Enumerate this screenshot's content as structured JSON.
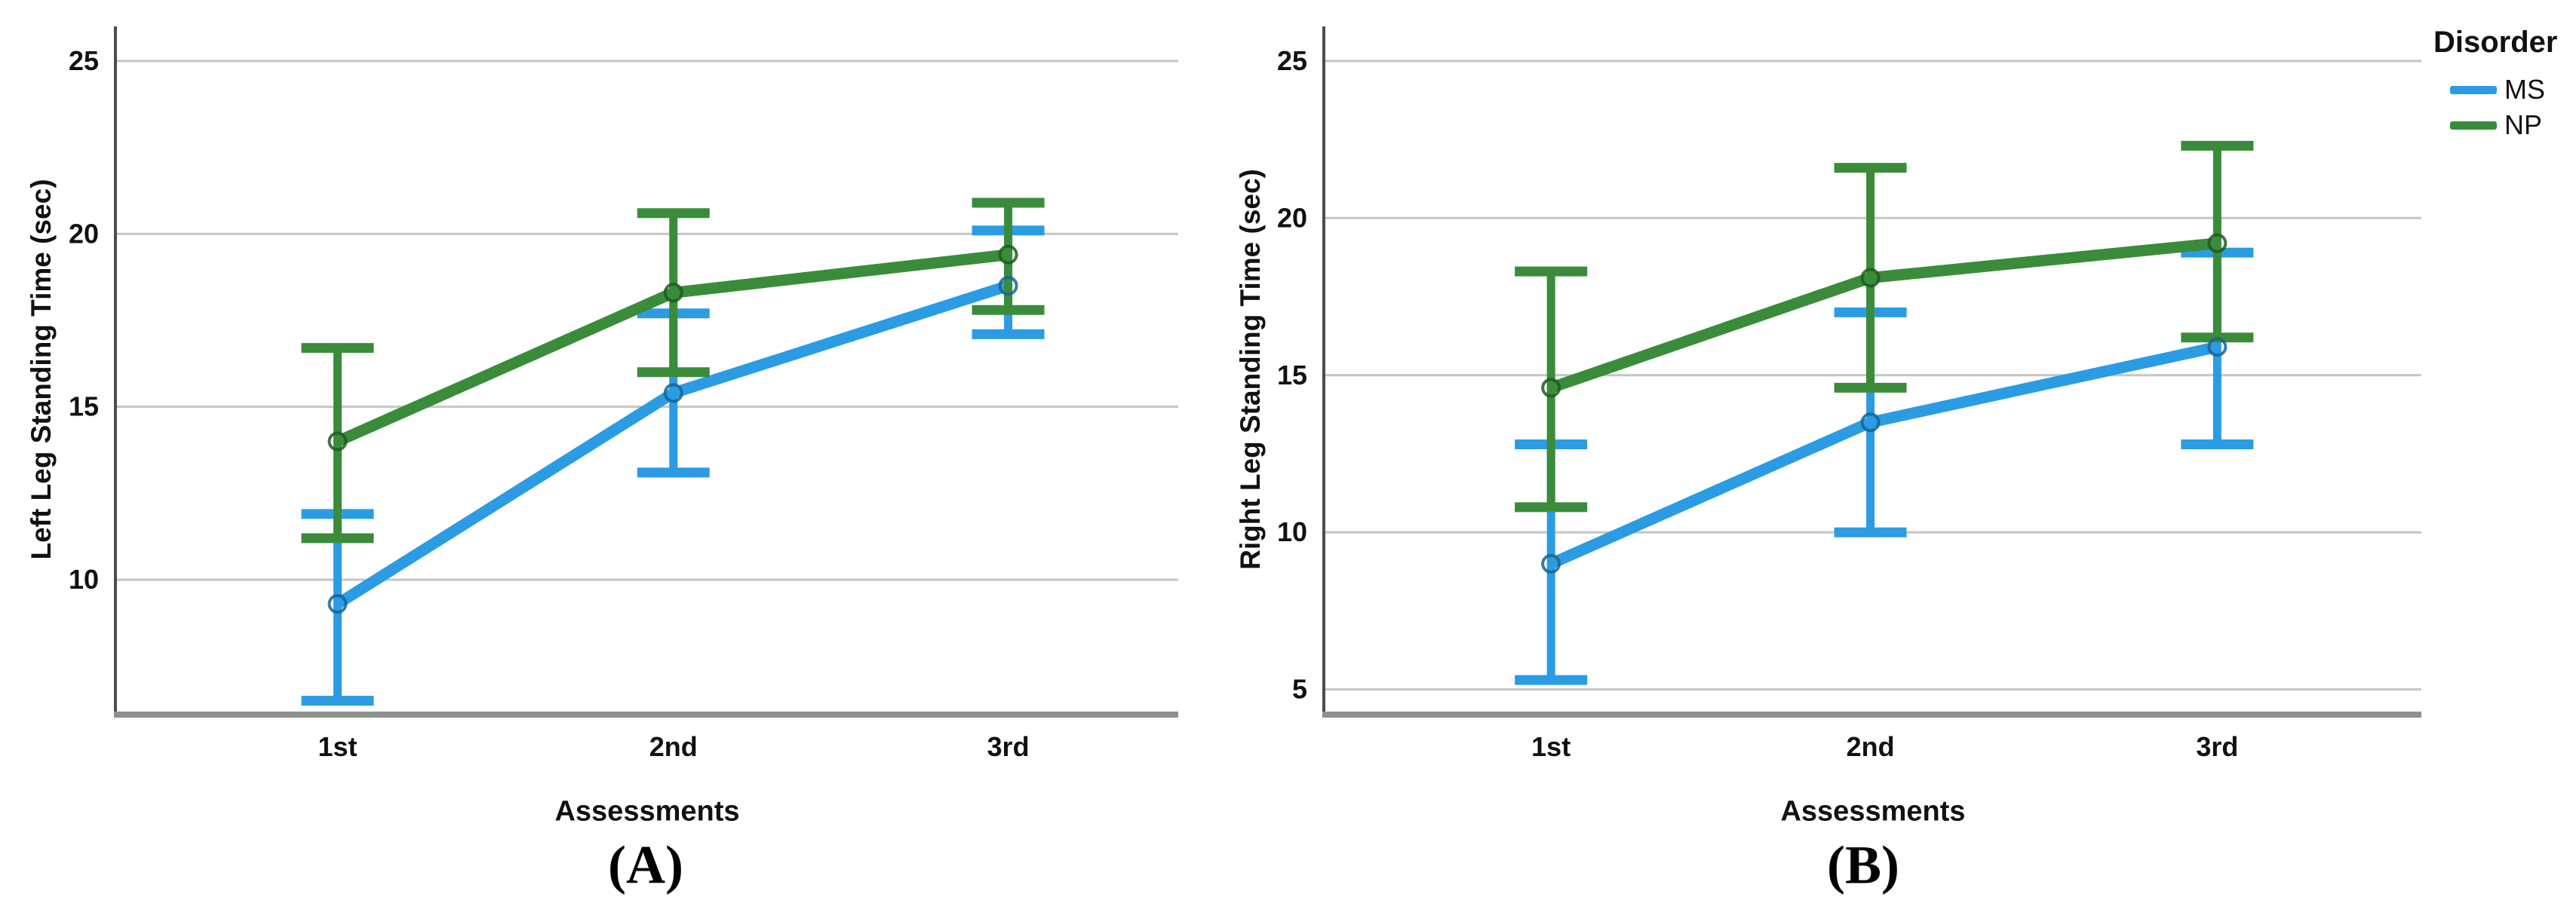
{
  "legend": {
    "title": "Disorder",
    "entries": [
      {
        "label": "MS",
        "color": "#2B9CE3"
      },
      {
        "label": "NP",
        "color": "#3A8C3A"
      }
    ]
  },
  "chart_data": [
    {
      "type": "line",
      "panel": "A",
      "caption": "(A)",
      "title": "",
      "xlabel": "Assessments",
      "ylabel": "Left Leg Standing Time (sec)",
      "categories": [
        "1st",
        "2nd",
        "3rd"
      ],
      "yticks": [
        25,
        20,
        15,
        10
      ],
      "ylim": [
        6.1,
        26.0
      ],
      "grid": true,
      "legend_position": "none",
      "series": [
        {
          "name": "MS",
          "color": "#2B9CE3",
          "marker_edge": "#16648F",
          "values": [
            9.3,
            15.4,
            18.5
          ],
          "err_low": [
            6.5,
            13.1,
            17.1
          ],
          "err_high": [
            11.9,
            17.7,
            20.1
          ]
        },
        {
          "name": "NP",
          "color": "#3A8C3A",
          "marker_edge": "#1E5A1E",
          "values": [
            14.0,
            18.3,
            19.4
          ],
          "err_low": [
            11.2,
            16.0,
            17.8
          ],
          "err_high": [
            16.7,
            20.6,
            20.9
          ]
        }
      ]
    },
    {
      "type": "line",
      "panel": "B",
      "caption": "(B)",
      "title": "",
      "xlabel": "Assessments",
      "ylabel": "Right Leg Standing Time (sec)",
      "categories": [
        "1st",
        "2nd",
        "3rd"
      ],
      "yticks": [
        25,
        20,
        15,
        10,
        5
      ],
      "ylim": [
        4.2,
        26.1
      ],
      "grid": true,
      "legend_position": "right-top",
      "series": [
        {
          "name": "MS",
          "color": "#2B9CE3",
          "marker_edge": "#16648F",
          "values": [
            9.0,
            13.5,
            15.9
          ],
          "err_low": [
            5.3,
            10.0,
            12.8
          ],
          "err_high": [
            12.8,
            17.0,
            18.9
          ]
        },
        {
          "name": "NP",
          "color": "#3A8C3A",
          "marker_edge": "#1E5A1E",
          "values": [
            14.6,
            18.1,
            19.2
          ],
          "err_low": [
            10.8,
            14.6,
            16.2
          ],
          "err_high": [
            18.3,
            21.6,
            22.3
          ]
        }
      ]
    }
  ]
}
